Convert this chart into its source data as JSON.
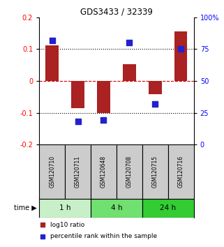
{
  "title": "GDS3433 / 32339",
  "samples": [
    "GSM120710",
    "GSM120711",
    "GSM120648",
    "GSM120708",
    "GSM120715",
    "GSM120716"
  ],
  "log10_ratio": [
    0.112,
    -0.085,
    -0.1,
    0.052,
    -0.042,
    0.155
  ],
  "percentile_rank": [
    82,
    18,
    19,
    80,
    32,
    75
  ],
  "time_groups": [
    {
      "label": "1 h",
      "start": 0,
      "end": 2,
      "color": "#c8f0c8"
    },
    {
      "label": "4 h",
      "start": 2,
      "end": 4,
      "color": "#70e070"
    },
    {
      "label": "24 h",
      "start": 4,
      "end": 6,
      "color": "#33cc33"
    }
  ],
  "bar_color": "#aa2222",
  "dot_color": "#2222cc",
  "ylim_left": [
    -0.2,
    0.2
  ],
  "ylim_right": [
    0,
    100
  ],
  "yticks_left": [
    -0.2,
    -0.1,
    0,
    0.1,
    0.2
  ],
  "yticks_right": [
    0,
    25,
    50,
    75,
    100
  ],
  "zero_line_color": "#cc0000",
  "background_color": "#ffffff",
  "sample_box_color": "#cccccc",
  "bar_width": 0.5,
  "dot_size": 30,
  "legend_items": [
    {
      "color": "#aa2222",
      "label": "log10 ratio"
    },
    {
      "color": "#2222cc",
      "label": "percentile rank within the sample"
    }
  ]
}
